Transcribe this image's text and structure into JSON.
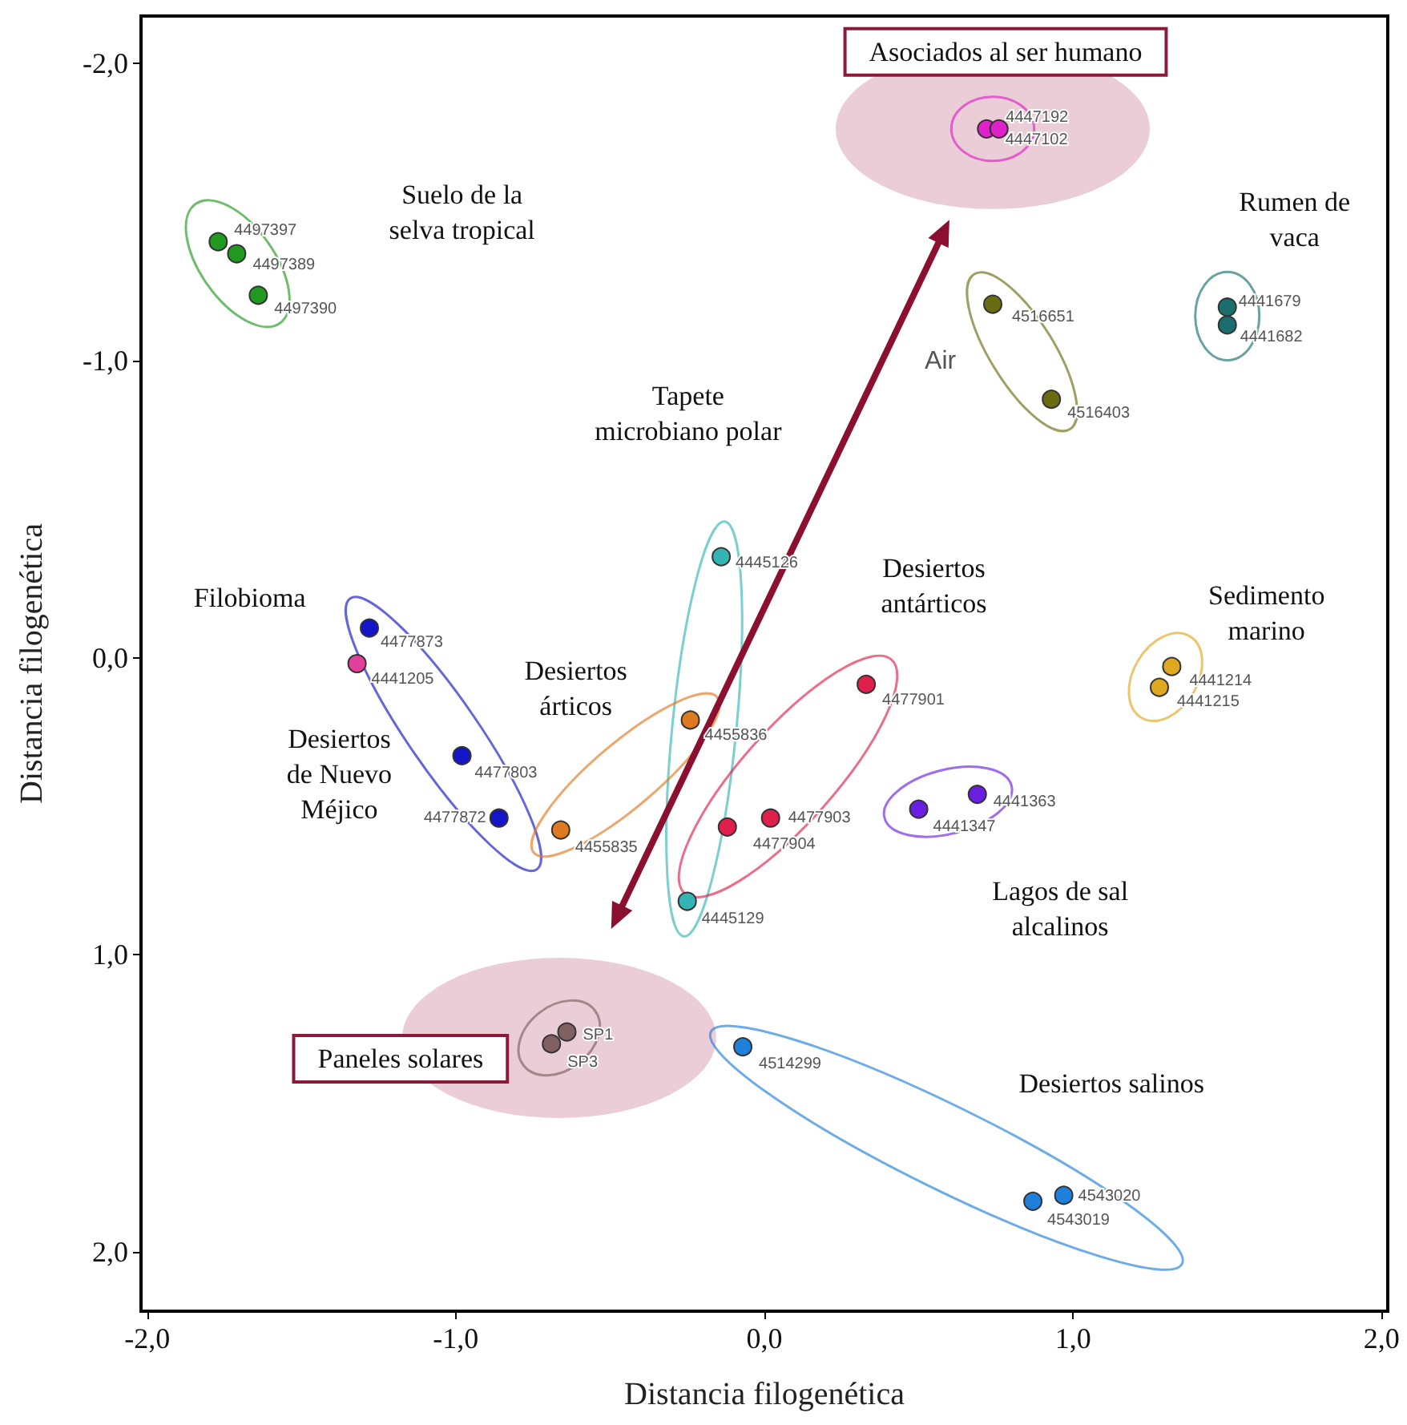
{
  "chart_data": {
    "type": "scatter",
    "xlabel": "Distancia filogenética",
    "ylabel": "Distancia filogenética",
    "xlim": [
      -2.02,
      2.02
    ],
    "xticks": [
      {
        "value": -2,
        "label": "-2,0"
      },
      {
        "value": -1,
        "label": "-1,0"
      },
      {
        "value": 0,
        "label": "0,0"
      },
      {
        "value": 1,
        "label": "1,0"
      },
      {
        "value": 2,
        "label": "2,0"
      }
    ],
    "ylim": [
      2.2,
      -2.16
    ],
    "yticks": [
      {
        "value": -2,
        "label": "-2,0"
      },
      {
        "value": -1,
        "label": "-1,0"
      },
      {
        "value": 0,
        "label": "0,0"
      },
      {
        "value": 1,
        "label": "1,0"
      },
      {
        "value": 2,
        "label": "2,0"
      }
    ],
    "marker": "circle",
    "series": [
      {
        "color": "#1f9a1f",
        "x": [
          -1.77,
          -1.71,
          -1.64
        ],
        "values": [
          -1.4,
          -1.36,
          -1.22
        ]
      },
      {
        "color": "#e020c8",
        "x": [
          0.72,
          0.76
        ],
        "values": [
          -1.78,
          -1.78
        ]
      },
      {
        "color": "#6b6b12",
        "x": [
          0.74,
          0.93
        ],
        "values": [
          -1.19,
          -0.87
        ]
      },
      {
        "color": "#1a6e6e",
        "x": [
          1.5,
          1.5
        ],
        "values": [
          -1.18,
          -1.12
        ]
      },
      {
        "color": "#33b5b5",
        "x": [
          -0.14,
          -0.25
        ],
        "values": [
          -0.34,
          0.82
        ]
      },
      {
        "color": "#1414c8",
        "x": [
          -1.28,
          -0.98,
          -0.86
        ],
        "values": [
          -0.1,
          0.33,
          0.54
        ]
      },
      {
        "color": "#e0409a",
        "x": [
          -1.32
        ],
        "values": [
          0.02
        ]
      },
      {
        "color": "#e07a20",
        "x": [
          -0.24,
          -0.66
        ],
        "values": [
          0.21,
          0.58
        ]
      },
      {
        "color": "#e0204a",
        "x": [
          0.33,
          -0.12,
          0.02
        ],
        "values": [
          0.09,
          0.57,
          0.54
        ]
      },
      {
        "color": "#6a1ee0",
        "x": [
          0.5,
          0.69
        ],
        "values": [
          0.51,
          0.46
        ]
      },
      {
        "color": "#e0a820",
        "x": [
          1.32,
          1.28
        ],
        "values": [
          0.03,
          0.1
        ]
      },
      {
        "color": "#806060",
        "x": [
          -0.64,
          -0.69
        ],
        "values": [
          1.26,
          1.3
        ]
      },
      {
        "color": "#1e80d8",
        "x": [
          -0.07,
          0.97,
          0.87
        ],
        "values": [
          1.31,
          1.81,
          1.83
        ]
      }
    ],
    "annotations": [
      "Suelo de la\nselva tropical",
      "Asociados al ser humano",
      "Air",
      "Rumen de\nvaca",
      "Tapete\nmicrobiano polar",
      "Desiertos\nde Nuevo\nMéjico",
      "Filobioma",
      "Desiertos\nárticos",
      "Desiertos\nantárticos",
      "Lagos de sal\nalcalinos",
      "Sedimento\nmarino",
      "Paneles solares",
      "Desiertos salinos",
      {
        "text": "4497397",
        "x": -1.77,
        "y": -1.4
      },
      {
        "text": "4497389",
        "x": -1.71,
        "y": -1.36
      },
      {
        "text": "4497390",
        "x": -1.64,
        "y": -1.22
      },
      {
        "text": "4447192",
        "x": 0.72,
        "y": -1.78
      },
      {
        "text": "4447102",
        "x": 0.76,
        "y": -1.78
      },
      {
        "text": "4516651",
        "x": 0.74,
        "y": -1.19
      },
      {
        "text": "4516403",
        "x": 0.93,
        "y": -0.87
      },
      {
        "text": "4441679",
        "x": 1.5,
        "y": -1.18
      },
      {
        "text": "4441682",
        "x": 1.5,
        "y": -1.12
      },
      {
        "text": "4445126",
        "x": -0.14,
        "y": -0.34
      },
      {
        "text": "4445129",
        "x": -0.25,
        "y": 0.82
      },
      {
        "text": "4477873",
        "x": -1.28,
        "y": -0.1
      },
      {
        "text": "4477803",
        "x": -0.98,
        "y": 0.33
      },
      {
        "text": "4477872",
        "x": -0.86,
        "y": 0.54
      },
      {
        "text": "4441205",
        "x": -1.32,
        "y": 0.02
      },
      {
        "text": "4455836",
        "x": -0.24,
        "y": 0.21
      },
      {
        "text": "4455835",
        "x": -0.66,
        "y": 0.58
      },
      {
        "text": "4477901",
        "x": 0.33,
        "y": 0.09
      },
      {
        "text": "4477904",
        "x": -0.12,
        "y": 0.57
      },
      {
        "text": "4477903",
        "x": 0.02,
        "y": 0.54
      },
      {
        "text": "4441347",
        "x": 0.5,
        "y": 0.51
      },
      {
        "text": "4441363",
        "x": 0.69,
        "y": 0.46
      },
      {
        "text": "4441214",
        "x": 1.32,
        "y": 0.03
      },
      {
        "text": "4441215",
        "x": 1.28,
        "y": 0.1
      },
      {
        "text": "SP1",
        "x": -0.64,
        "y": 1.26
      },
      {
        "text": "SP3",
        "x": -0.69,
        "y": 1.3
      },
      {
        "text": "4514299",
        "x": -0.07,
        "y": 1.31
      },
      {
        "text": "4543020",
        "x": 0.97,
        "y": 1.81
      },
      {
        "text": "4543019",
        "x": 0.87,
        "y": 1.83
      }
    ]
  }
}
